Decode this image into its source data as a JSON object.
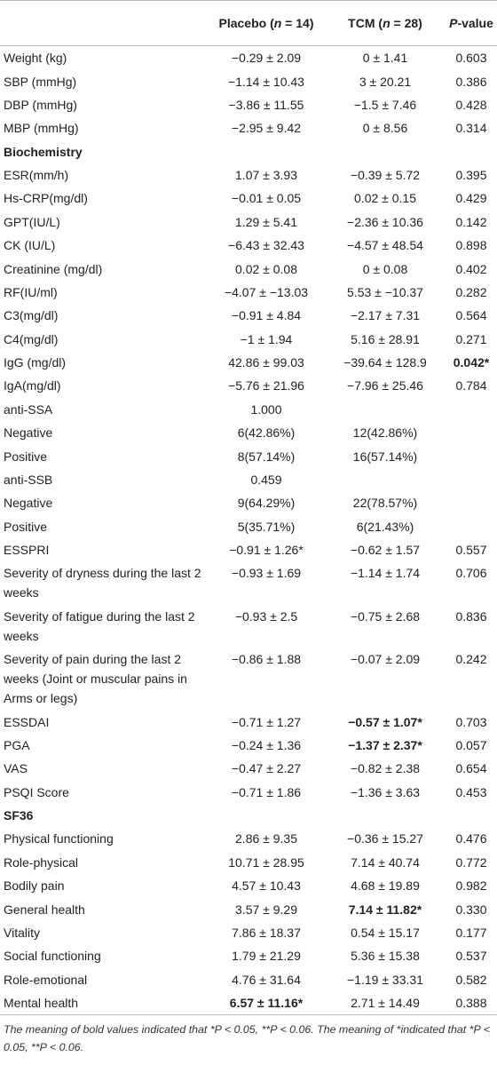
{
  "header": {
    "placebo": [
      "Placebo (",
      "n",
      " = 14)"
    ],
    "tcm": [
      "TCM (",
      "n",
      " = 28)"
    ],
    "p": [
      "P",
      "-value"
    ]
  },
  "table": {
    "rows": [
      [
        "Weight (kg)",
        "−0.29 ± 2.09",
        "0 ± 1.41",
        "0.603"
      ],
      [
        "SBP (mmHg)",
        "−1.14 ± 10.43",
        "3 ± 20.21",
        "0.386"
      ],
      [
        "DBP (mmHg)",
        "−3.86 ± 11.55",
        "−1.5 ± 7.46",
        "0.428"
      ],
      [
        "MBP (mmHg)",
        "−2.95 ± 9.42",
        "0 ± 8.56",
        "0.314"
      ],
      {
        "section": "Biochemistry"
      },
      [
        "ESR(mm/h)",
        "1.07 ± 3.93",
        "−0.39 ± 5.72",
        "0.395"
      ],
      [
        "Hs-CRP(mg/dl)",
        "−0.01 ± 0.05",
        "0.02 ± 0.15",
        "0.429"
      ],
      [
        "GPT(IU/L)",
        "1.29 ± 5.41",
        "−2.36 ± 10.36",
        "0.142"
      ],
      [
        "CK (IU/L)",
        "−6.43 ± 32.43",
        "−4.57 ± 48.54",
        "0.898"
      ],
      [
        "Creatinine (mg/dl)",
        "0.02 ± 0.08",
        "0 ± 0.08",
        "0.402"
      ],
      [
        "RF(IU/ml)",
        "−4.07 ± −13.03",
        "5.53 ± −10.37",
        "0.282"
      ],
      [
        "C3(mg/dl)",
        "−0.91 ± 4.84",
        "−2.17 ± 7.31",
        "0.564"
      ],
      [
        "C4(mg/dl)",
        "−1 ± 1.94",
        "5.16 ± 28.91",
        "0.271"
      ],
      [
        "IgG (mg/dl)",
        "42.86 ± 99.03",
        "−39.64 ± 128.9",
        {
          "text": "0.042*",
          "bold": true
        }
      ],
      [
        "IgA(mg/dl)",
        "−5.76 ± 21.96",
        "−7.96 ± 25.46",
        "0.784"
      ],
      [
        "anti-SSA",
        "1.000"
      ],
      [
        "Negative",
        "6(42.86%)",
        "12(42.86%)"
      ],
      [
        "Positive",
        "8(57.14%)",
        "16(57.14%)"
      ],
      [
        "anti-SSB",
        "0.459"
      ],
      [
        "Negative",
        "9(64.29%)",
        "22(78.57%)"
      ],
      [
        "Positive",
        "5(35.71%)",
        "6(21.43%)"
      ],
      [
        "ESSPRI",
        "−0.91 ± 1.26*",
        "−0.62 ± 1.57",
        "0.557"
      ],
      [
        "Severity of dryness during the last 2 weeks",
        "−0.93 ± 1.69",
        "−1.14 ± 1.74",
        "0.706"
      ],
      [
        "Severity of fatigue during the last 2 weeks",
        "−0.93 ± 2.5",
        "−0.75 ± 2.68",
        "0.836"
      ],
      [
        "Severity of pain during the last 2 weeks (Joint or muscular pains in Arms or legs)",
        "−0.86 ± 1.88",
        "−0.07 ± 2.09",
        "0.242"
      ],
      [
        "ESSDAI",
        "−0.71 ± 1.27",
        {
          "text": "−0.57 ± 1.07*",
          "bold": true
        },
        "0.703"
      ],
      [
        "PGA",
        "−0.24 ± 1.36",
        {
          "text": "−1.37 ± 2.37*",
          "bold": true
        },
        "0.057"
      ],
      [
        "VAS",
        "−0.47 ± 2.27",
        "−0.82 ± 2.38",
        "0.654"
      ],
      [
        "PSQI Score",
        "−0.71 ± 1.86",
        "−1.36 ± 3.63",
        "0.453"
      ],
      {
        "section": "SF36"
      },
      [
        "Physical functioning",
        "2.86 ± 9.35",
        "−0.36 ± 15.27",
        "0.476"
      ],
      [
        "Role-physical",
        "10.71 ± 28.95",
        "7.14 ± 40.74",
        "0.772"
      ],
      [
        "Bodily pain",
        "4.57 ± 10.43",
        "4.68 ± 19.89",
        "0.982"
      ],
      [
        "General health",
        "3.57 ± 9.29",
        {
          "text": "7.14 ± 11.82*",
          "bold": true
        },
        "0.330"
      ],
      [
        "Vitality",
        "7.86 ± 18.37",
        "0.54 ± 15.17",
        "0.177"
      ],
      [
        "Social functioning",
        "1.79 ± 21.29",
        "5.36 ± 15.38",
        "0.537"
      ],
      [
        "Role-emotional",
        "4.76 ± 31.64",
        "−1.19 ± 33.31",
        "0.582"
      ],
      [
        "Mental health",
        {
          "text": "6.57 ± 11.16*",
          "bold": true
        },
        "2.71 ± 14.49",
        "0.388"
      ]
    ]
  },
  "footnote": "The meaning of bold values indicated that *P < 0.05, **P < 0.06. The meaning of *indicated that *P < 0.05, **P < 0.06."
}
